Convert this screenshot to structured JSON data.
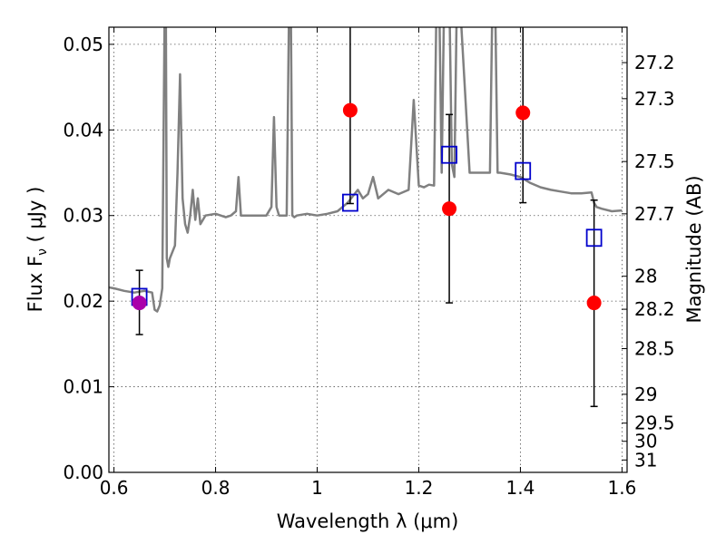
{
  "chart_data": {
    "type": "scatter",
    "xlabel": "Wavelength  λ (μm)",
    "ylabel": "Flux  F",
    "ylabel_sub": "ν",
    "ylabel_unit": " ( μJy )",
    "y2label": "Magnitude (AB)",
    "xlim": [
      0.59,
      1.61
    ],
    "ylim": [
      0.0,
      0.052
    ],
    "grid": true,
    "x_ticks": [
      0.6,
      0.8,
      1.0,
      1.2,
      1.4,
      1.6
    ],
    "x_tick_labels": [
      "0.6",
      "0.8",
      "1",
      "1.2",
      "1.4",
      "1.6"
    ],
    "y_ticks": [
      0.0,
      0.01,
      0.02,
      0.03,
      0.04,
      0.05
    ],
    "y_tick_labels": [
      "0.00",
      "0.01",
      "0.02",
      "0.03",
      "0.04",
      "0.05"
    ],
    "mag_ticks": [
      27.2,
      27.3,
      27.5,
      27.7,
      28,
      28.2,
      28.5,
      29,
      29.5,
      30,
      31
    ],
    "mag_tick_labels": [
      "27.2",
      "27.3",
      "27.5",
      "27.7",
      "28",
      "28.2",
      "28.5",
      "29",
      "29.5",
      "30",
      "31"
    ],
    "colors": {
      "model": "#808080",
      "observed": "#ff0000",
      "observed_optical": "#aa00aa",
      "synthetic": "#0000cc",
      "errorbar": "#000000"
    },
    "series": [
      {
        "kind": "model_spectrum",
        "x": [
          0.59,
          0.6,
          0.62,
          0.64,
          0.66,
          0.675,
          0.68,
          0.685,
          0.69,
          0.695,
          0.7,
          0.702,
          0.704,
          0.707,
          0.71,
          0.72,
          0.725,
          0.73,
          0.735,
          0.74,
          0.745,
          0.75,
          0.755,
          0.76,
          0.765,
          0.77,
          0.78,
          0.8,
          0.82,
          0.83,
          0.84,
          0.845,
          0.85,
          0.86,
          0.88,
          0.9,
          0.91,
          0.915,
          0.92,
          0.925,
          0.93,
          0.94,
          0.945,
          0.948,
          0.951,
          0.955,
          0.96,
          0.98,
          1.0,
          1.02,
          1.04,
          1.06,
          1.08,
          1.09,
          1.1,
          1.11,
          1.12,
          1.14,
          1.16,
          1.18,
          1.19,
          1.2,
          1.21,
          1.22,
          1.23,
          1.235,
          1.24,
          1.245,
          1.25,
          1.26,
          1.265,
          1.27,
          1.275,
          1.28,
          1.3,
          1.32,
          1.34,
          1.345,
          1.35,
          1.355,
          1.36,
          1.38,
          1.4,
          1.42,
          1.44,
          1.46,
          1.48,
          1.5,
          1.52,
          1.54,
          1.545,
          1.55,
          1.56,
          1.58,
          1.6
        ],
        "values": [
          0.0216,
          0.0215,
          0.0212,
          0.021,
          0.0212,
          0.021,
          0.019,
          0.0188,
          0.0195,
          0.0215,
          0.056,
          0.056,
          0.025,
          0.024,
          0.025,
          0.0265,
          0.035,
          0.0465,
          0.032,
          0.029,
          0.028,
          0.03,
          0.033,
          0.0295,
          0.032,
          0.029,
          0.03,
          0.0302,
          0.0298,
          0.03,
          0.0305,
          0.0345,
          0.03,
          0.03,
          0.03,
          0.03,
          0.031,
          0.0415,
          0.031,
          0.03,
          0.03,
          0.03,
          0.056,
          0.056,
          0.03,
          0.0298,
          0.03,
          0.0302,
          0.03,
          0.0302,
          0.0305,
          0.0315,
          0.033,
          0.032,
          0.0325,
          0.0345,
          0.032,
          0.033,
          0.0325,
          0.033,
          0.0435,
          0.0335,
          0.0333,
          0.0336,
          0.0335,
          0.056,
          0.056,
          0.035,
          0.056,
          0.056,
          0.036,
          0.0345,
          0.056,
          0.056,
          0.035,
          0.035,
          0.035,
          0.056,
          0.056,
          0.035,
          0.035,
          0.0348,
          0.0345,
          0.0338,
          0.0333,
          0.033,
          0.0328,
          0.0326,
          0.0326,
          0.0327,
          0.0315,
          0.031,
          0.0308,
          0.0305,
          0.0306
        ]
      },
      {
        "kind": "synthetic_photometry",
        "x": [
          0.65,
          1.065,
          1.26,
          1.405,
          1.545
        ],
        "values": [
          0.0205,
          0.0315,
          0.0371,
          0.0352,
          0.0274
        ]
      },
      {
        "kind": "observed_photometry",
        "x": [
          0.65,
          1.065,
          1.26,
          1.405,
          1.545
        ],
        "values": [
          0.0198,
          0.0423,
          0.0308,
          0.042,
          0.0198
        ],
        "err_low": [
          0.0161,
          0.0314,
          0.0198,
          0.0315,
          0.0077
        ],
        "err_high": [
          0.0236,
          0.056,
          0.0418,
          0.0522,
          0.0318
        ]
      }
    ]
  }
}
